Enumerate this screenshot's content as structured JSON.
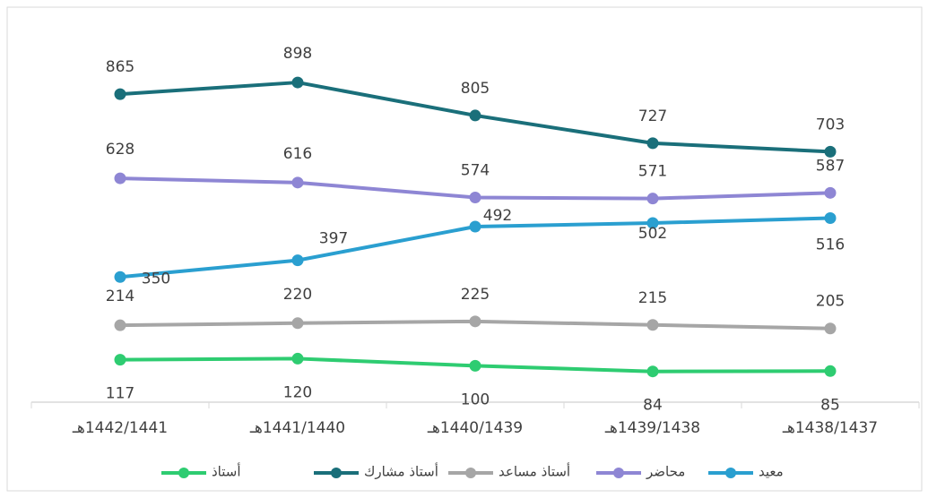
{
  "chart_data": {
    "type": "line",
    "categories": [
      "1442/1441هـ",
      "1441/1440هـ",
      "1440/1439هـ",
      "1439/1438هـ",
      "1438/1437هـ"
    ],
    "ylim": [
      0,
      1100
    ],
    "series": [
      {
        "name": "أستاذ",
        "color": "#2ecc71",
        "values": [
          117,
          120,
          100,
          84,
          85
        ]
      },
      {
        "name": "أستاذ مشارك",
        "color": "#1a6f7a",
        "values": [
          865,
          898,
          805,
          727,
          703
        ]
      },
      {
        "name": "أستاذ مساعد",
        "color": "#a6a6a6",
        "values": [
          214,
          220,
          225,
          215,
          205
        ]
      },
      {
        "name": "محاضر",
        "color": "#8e86d4",
        "values": [
          628,
          616,
          574,
          571,
          587
        ]
      },
      {
        "name": "معيد",
        "color": "#2a9fd0",
        "values": [
          350,
          397,
          492,
          502,
          516
        ]
      }
    ]
  }
}
